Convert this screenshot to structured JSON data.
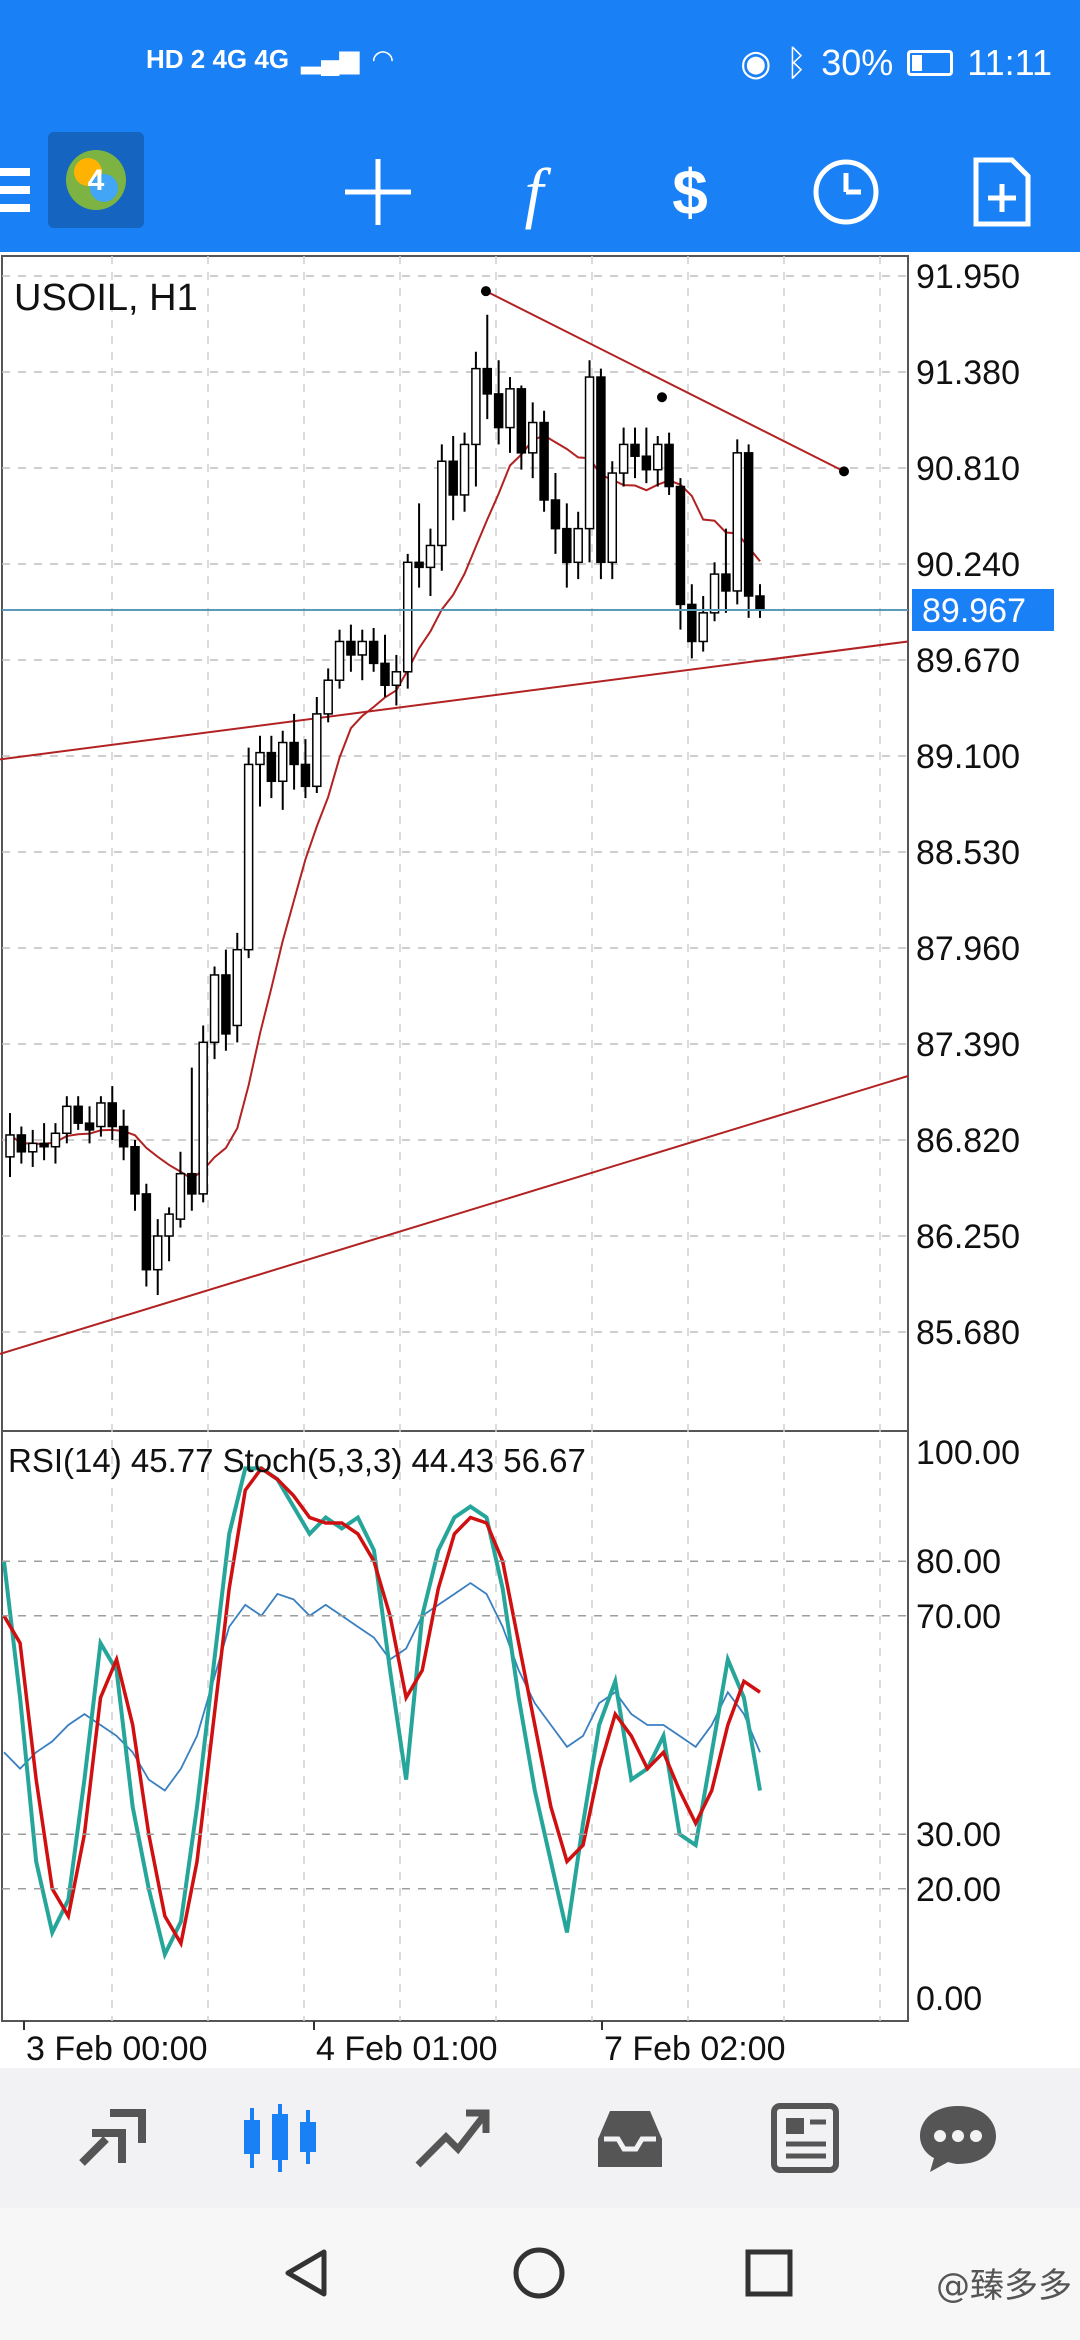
{
  "status_bar": {
    "network": "HD 2  4G  4G",
    "battery": "30%",
    "time": "11:11"
  },
  "toolbar": {
    "menu_icon": "hamburger-icon",
    "app_icon": "metatrader-4-logo",
    "buttons": [
      "crosshair-icon",
      "function-icon",
      "symbol-exchange-icon",
      "timeframe-clock-icon",
      "new-document-icon"
    ]
  },
  "chart": {
    "symbol_label": "USOIL, H1",
    "current_price": "89.967",
    "price_ticks": [
      "91.950",
      "91.380",
      "90.810",
      "90.240",
      "89.670",
      "89.100",
      "88.530",
      "87.960",
      "87.390",
      "86.820",
      "86.250",
      "85.680"
    ],
    "indicator_label": "RSI(14) 45.77 Stoch(5,3,3) 44.43 56.67",
    "indicator_ticks": [
      "100.00",
      "80.00",
      "70.00",
      "30.00",
      "20.00",
      "0.00"
    ],
    "time_ticks": [
      "3 Feb 00:00",
      "4 Feb 01:00",
      "7 Feb 02:00"
    ],
    "colors": {
      "up_candle": "#ffffff",
      "down_candle": "#000000",
      "ma_line": "#b22222",
      "trend_line": "#b22222",
      "stoch_main": "#26a69a",
      "stoch_signal": "#d01010",
      "rsi_line": "#3a7fc0",
      "price_line": "#5a9ab8",
      "price_tag": "#1a80f5"
    }
  },
  "chart_data": {
    "type": "candlestick",
    "title": "USOIL, H1",
    "ylim": [
      85.4,
      92.2
    ],
    "candles": [
      {
        "o": 86.72,
        "h": 86.98,
        "l": 86.6,
        "c": 86.85
      },
      {
        "o": 86.85,
        "h": 86.9,
        "l": 86.68,
        "c": 86.75
      },
      {
        "o": 86.75,
        "h": 86.88,
        "l": 86.66,
        "c": 86.8
      },
      {
        "o": 86.8,
        "h": 86.92,
        "l": 86.7,
        "c": 86.78
      },
      {
        "o": 86.78,
        "h": 86.92,
        "l": 86.68,
        "c": 86.86
      },
      {
        "o": 86.86,
        "h": 87.08,
        "l": 86.8,
        "c": 87.02
      },
      {
        "o": 87.02,
        "h": 87.08,
        "l": 86.88,
        "c": 86.92
      },
      {
        "o": 86.92,
        "h": 87.02,
        "l": 86.8,
        "c": 86.88
      },
      {
        "o": 86.9,
        "h": 87.08,
        "l": 86.84,
        "c": 87.04
      },
      {
        "o": 87.04,
        "h": 87.14,
        "l": 86.82,
        "c": 86.9
      },
      {
        "o": 86.9,
        "h": 87.0,
        "l": 86.7,
        "c": 86.78
      },
      {
        "o": 86.78,
        "h": 86.82,
        "l": 86.4,
        "c": 86.5
      },
      {
        "o": 86.5,
        "h": 86.56,
        "l": 85.95,
        "c": 86.05
      },
      {
        "o": 86.05,
        "h": 86.35,
        "l": 85.9,
        "c": 86.25
      },
      {
        "o": 86.25,
        "h": 86.42,
        "l": 86.1,
        "c": 86.38
      },
      {
        "o": 86.35,
        "h": 86.75,
        "l": 86.3,
        "c": 86.62
      },
      {
        "o": 86.62,
        "h": 87.25,
        "l": 86.4,
        "c": 86.5
      },
      {
        "o": 86.5,
        "h": 87.5,
        "l": 86.45,
        "c": 87.4
      },
      {
        "o": 87.4,
        "h": 87.85,
        "l": 87.3,
        "c": 87.8
      },
      {
        "o": 87.8,
        "h": 87.95,
        "l": 87.35,
        "c": 87.45
      },
      {
        "o": 87.5,
        "h": 88.05,
        "l": 87.4,
        "c": 87.95
      },
      {
        "o": 87.95,
        "h": 89.15,
        "l": 87.9,
        "c": 89.05
      },
      {
        "o": 89.05,
        "h": 89.22,
        "l": 88.8,
        "c": 89.12
      },
      {
        "o": 89.12,
        "h": 89.22,
        "l": 88.85,
        "c": 88.95
      },
      {
        "o": 88.95,
        "h": 89.25,
        "l": 88.78,
        "c": 89.18
      },
      {
        "o": 89.18,
        "h": 89.35,
        "l": 88.9,
        "c": 89.05
      },
      {
        "o": 89.05,
        "h": 89.2,
        "l": 88.85,
        "c": 88.92
      },
      {
        "o": 88.92,
        "h": 89.45,
        "l": 88.88,
        "c": 89.35
      },
      {
        "o": 89.35,
        "h": 89.62,
        "l": 89.3,
        "c": 89.55
      },
      {
        "o": 89.55,
        "h": 89.85,
        "l": 89.5,
        "c": 89.78
      },
      {
        "o": 89.78,
        "h": 89.88,
        "l": 89.6,
        "c": 89.7
      },
      {
        "o": 89.7,
        "h": 89.85,
        "l": 89.55,
        "c": 89.78
      },
      {
        "o": 89.78,
        "h": 89.86,
        "l": 89.6,
        "c": 89.65
      },
      {
        "o": 89.65,
        "h": 89.82,
        "l": 89.45,
        "c": 89.52
      },
      {
        "o": 89.52,
        "h": 89.7,
        "l": 89.4,
        "c": 89.6
      },
      {
        "o": 89.6,
        "h": 90.3,
        "l": 89.5,
        "c": 90.25
      },
      {
        "o": 90.25,
        "h": 90.6,
        "l": 90.1,
        "c": 90.22
      },
      {
        "o": 90.22,
        "h": 90.45,
        "l": 90.05,
        "c": 90.35
      },
      {
        "o": 90.35,
        "h": 90.95,
        "l": 90.2,
        "c": 90.85
      },
      {
        "o": 90.85,
        "h": 91.0,
        "l": 90.5,
        "c": 90.65
      },
      {
        "o": 90.65,
        "h": 91.02,
        "l": 90.55,
        "c": 90.95
      },
      {
        "o": 90.95,
        "h": 91.5,
        "l": 90.7,
        "c": 91.4
      },
      {
        "o": 91.4,
        "h": 91.72,
        "l": 91.1,
        "c": 91.25
      },
      {
        "o": 91.25,
        "h": 91.45,
        "l": 90.95,
        "c": 91.05
      },
      {
        "o": 91.05,
        "h": 91.35,
        "l": 90.9,
        "c": 91.28
      },
      {
        "o": 91.28,
        "h": 91.3,
        "l": 90.8,
        "c": 90.9
      },
      {
        "o": 90.9,
        "h": 91.2,
        "l": 90.75,
        "c": 91.08
      },
      {
        "o": 91.08,
        "h": 91.15,
        "l": 90.55,
        "c": 90.62
      },
      {
        "o": 90.62,
        "h": 90.78,
        "l": 90.3,
        "c": 90.45
      },
      {
        "o": 90.45,
        "h": 90.6,
        "l": 90.1,
        "c": 90.25
      },
      {
        "o": 90.25,
        "h": 90.55,
        "l": 90.15,
        "c": 90.45
      },
      {
        "o": 90.45,
        "h": 91.45,
        "l": 90.25,
        "c": 91.35
      },
      {
        "o": 91.35,
        "h": 91.4,
        "l": 90.15,
        "c": 90.25
      },
      {
        "o": 90.25,
        "h": 90.85,
        "l": 90.15,
        "c": 90.78
      },
      {
        "o": 90.78,
        "h": 91.05,
        "l": 90.7,
        "c": 90.95
      },
      {
        "o": 90.95,
        "h": 91.05,
        "l": 90.75,
        "c": 90.88
      },
      {
        "o": 90.88,
        "h": 91.05,
        "l": 90.72,
        "c": 90.8
      },
      {
        "o": 90.8,
        "h": 91.0,
        "l": 90.7,
        "c": 90.95
      },
      {
        "o": 90.95,
        "h": 91.02,
        "l": 90.65,
        "c": 90.7
      },
      {
        "o": 90.7,
        "h": 90.75,
        "l": 89.85,
        "c": 90.0
      },
      {
        "o": 90.0,
        "h": 90.12,
        "l": 89.68,
        "c": 89.78
      },
      {
        "o": 89.78,
        "h": 90.05,
        "l": 89.72,
        "c": 89.95
      },
      {
        "o": 89.95,
        "h": 90.25,
        "l": 89.9,
        "c": 90.18
      },
      {
        "o": 90.18,
        "h": 90.45,
        "l": 89.95,
        "c": 90.08
      },
      {
        "o": 90.08,
        "h": 90.98,
        "l": 90.0,
        "c": 90.9
      },
      {
        "o": 90.9,
        "h": 90.95,
        "l": 89.92,
        "c": 90.05
      },
      {
        "o": 90.05,
        "h": 90.12,
        "l": 89.92,
        "c": 89.97
      }
    ],
    "indicator": {
      "name": "RSI(14) / Stoch(5,3,3)",
      "ylim": [
        0,
        100
      ],
      "levels": [
        20,
        30,
        70,
        80
      ],
      "rsi_last": 45.77,
      "stoch_main_last": 44.43,
      "stoch_signal_last": 56.67
    }
  },
  "bottom_nav": [
    "quotes-icon",
    "chart-icon",
    "trade-icon",
    "history-icon",
    "news-icon",
    "chat-icon"
  ],
  "watermark": "@臻多多"
}
